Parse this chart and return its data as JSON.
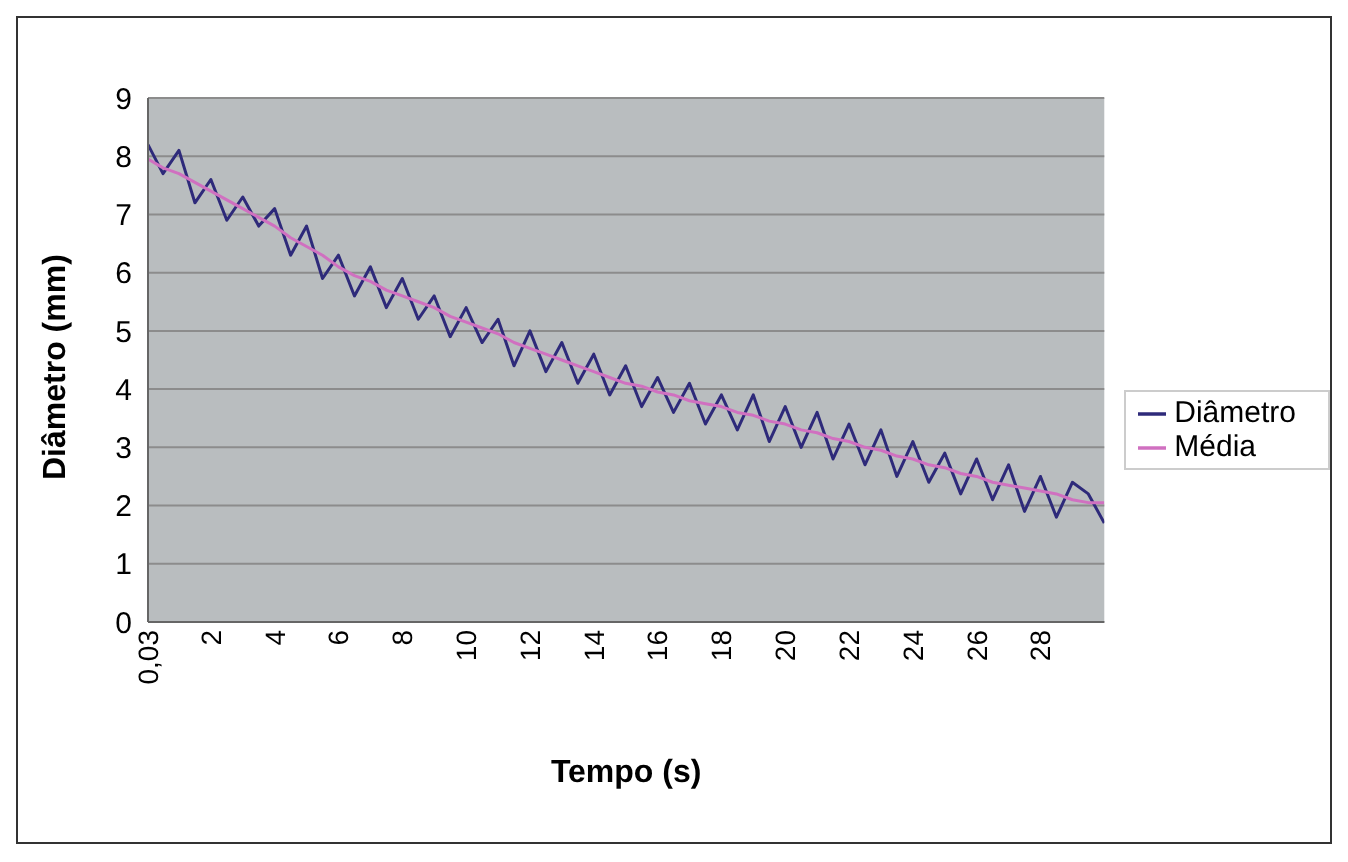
{
  "chart_data": {
    "type": "line",
    "xlabel": "Tempo (s)",
    "ylabel": "Diâmetro (mm)",
    "xlim": [
      0.03,
      30
    ],
    "xticks": [
      {
        "value": 0.03,
        "label": "0,03"
      },
      2,
      4,
      6,
      8,
      10,
      12,
      14,
      16,
      18,
      20,
      22,
      24,
      26,
      28
    ],
    "ylim": [
      0,
      9
    ],
    "yticks": [
      0,
      1,
      2,
      3,
      4,
      5,
      6,
      7,
      8,
      9
    ],
    "grid": "y",
    "legend": "right",
    "marker": "none",
    "line_style": "solid",
    "x": [
      0.03,
      0.5,
      1,
      1.5,
      2,
      2.5,
      3,
      3.5,
      4,
      4.5,
      5,
      5.5,
      6,
      6.5,
      7,
      7.5,
      8,
      8.5,
      9,
      9.5,
      10,
      10.5,
      11,
      11.5,
      12,
      12.5,
      13,
      13.5,
      14,
      14.5,
      15,
      15.5,
      16,
      16.5,
      17,
      17.5,
      18,
      18.5,
      19,
      19.5,
      20,
      20.5,
      21,
      21.5,
      22,
      22.5,
      23,
      23.5,
      24,
      24.5,
      25,
      25.5,
      26,
      26.5,
      27,
      27.5,
      28,
      28.5,
      29,
      29.5,
      30
    ],
    "series": [
      {
        "name": "Diâmetro",
        "color": "#2e2a7a",
        "values": [
          8.2,
          7.7,
          8.1,
          7.2,
          7.6,
          6.9,
          7.3,
          6.8,
          7.1,
          6.3,
          6.8,
          5.9,
          6.3,
          5.6,
          6.1,
          5.4,
          5.9,
          5.2,
          5.6,
          4.9,
          5.4,
          4.8,
          5.2,
          4.4,
          5.0,
          4.3,
          4.8,
          4.1,
          4.6,
          3.9,
          4.4,
          3.7,
          4.2,
          3.6,
          4.1,
          3.4,
          3.9,
          3.3,
          3.9,
          3.1,
          3.7,
          3.0,
          3.6,
          2.8,
          3.4,
          2.7,
          3.3,
          2.5,
          3.1,
          2.4,
          2.9,
          2.2,
          2.8,
          2.1,
          2.7,
          1.9,
          2.5,
          1.8,
          2.4,
          2.2,
          1.7
        ]
      },
      {
        "name": "Média",
        "color": "#d070c0",
        "values": [
          7.95,
          7.8,
          7.7,
          7.55,
          7.4,
          7.25,
          7.1,
          6.95,
          6.8,
          6.6,
          6.45,
          6.3,
          6.1,
          5.95,
          5.85,
          5.7,
          5.6,
          5.5,
          5.4,
          5.25,
          5.15,
          5.05,
          4.95,
          4.8,
          4.7,
          4.6,
          4.5,
          4.4,
          4.3,
          4.2,
          4.1,
          4.05,
          3.95,
          3.9,
          3.8,
          3.75,
          3.7,
          3.6,
          3.55,
          3.45,
          3.4,
          3.3,
          3.25,
          3.15,
          3.1,
          3.0,
          2.95,
          2.85,
          2.8,
          2.7,
          2.65,
          2.55,
          2.5,
          2.4,
          2.35,
          2.3,
          2.25,
          2.2,
          2.1,
          2.05,
          2.05
        ]
      }
    ]
  }
}
